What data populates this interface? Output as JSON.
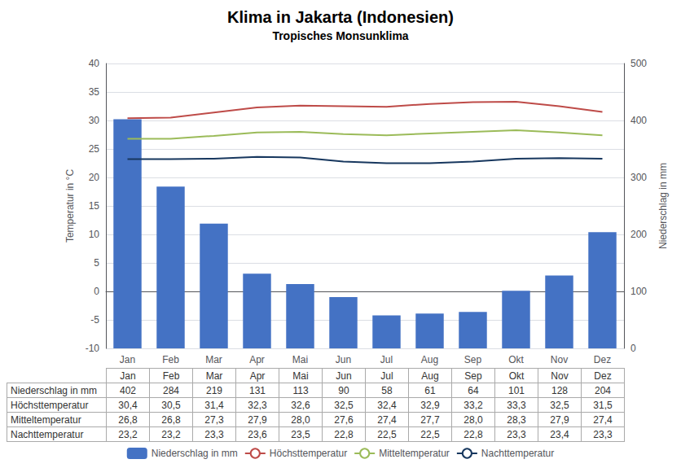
{
  "chart_data": {
    "type": "bar",
    "title": "Klima in Jakarta (Indonesien)",
    "subtitle": "Tropisches Monsunklima",
    "categories": [
      "Jan",
      "Feb",
      "Mar",
      "Apr",
      "Mai",
      "Jun",
      "Jul",
      "Aug",
      "Sep",
      "Okt",
      "Nov",
      "Dez"
    ],
    "series": [
      {
        "name": "Niederschlag in mm",
        "type": "bar",
        "axis": "y2",
        "color": "#4472C4",
        "values": [
          402,
          284,
          219,
          131,
          113,
          90,
          58,
          61,
          64,
          101,
          128,
          204
        ]
      },
      {
        "name": "Höchsttemperatur",
        "type": "line",
        "color": "#BE4B48",
        "values": [
          30.4,
          30.5,
          31.4,
          32.3,
          32.6,
          32.5,
          32.4,
          32.9,
          33.2,
          33.3,
          32.5,
          31.5
        ],
        "value_labels": [
          "30,4",
          "30,5",
          "31,4",
          "32,3",
          "32,6",
          "32,5",
          "32,4",
          "32,9",
          "33,2",
          "33,3",
          "32,5",
          "31,5"
        ]
      },
      {
        "name": "Mitteltemperatur",
        "type": "line",
        "color": "#9BBB59",
        "values": [
          26.8,
          26.8,
          27.3,
          27.9,
          28.0,
          27.6,
          27.4,
          27.7,
          28.0,
          28.3,
          27.9,
          27.4
        ],
        "value_labels": [
          "26,8",
          "26,8",
          "27,3",
          "27,9",
          "28,0",
          "27,6",
          "27,4",
          "27,7",
          "28,0",
          "28,3",
          "27,9",
          "27,4"
        ]
      },
      {
        "name": "Nachttemperatur",
        "type": "line",
        "color": "#17375E",
        "values": [
          23.2,
          23.2,
          23.3,
          23.6,
          23.5,
          22.8,
          22.5,
          22.5,
          22.8,
          23.3,
          23.4,
          23.3
        ],
        "value_labels": [
          "23,2",
          "23,2",
          "23,3",
          "23,6",
          "23,5",
          "22,8",
          "22,5",
          "22,5",
          "22,8",
          "23,3",
          "23,4",
          "23,3"
        ]
      }
    ],
    "ylabel": "Temperatur in °C",
    "ylim": [
      -10,
      40
    ],
    "yticks": [
      -10,
      -5,
      0,
      5,
      10,
      15,
      20,
      25,
      30,
      35,
      40
    ],
    "y2label": "Niederschlag in mm",
    "y2lim": [
      0,
      500
    ],
    "y2ticks": [
      0,
      100,
      200,
      300,
      400,
      500
    ],
    "grid": true,
    "legend": "bottom"
  }
}
